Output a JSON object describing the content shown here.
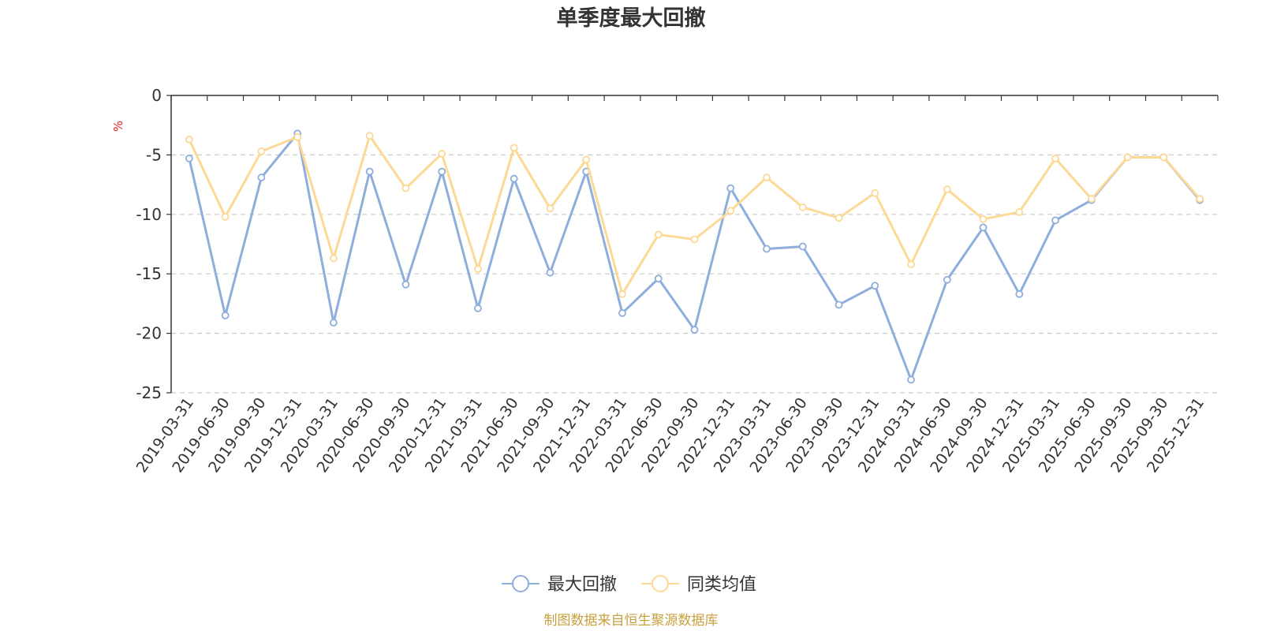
{
  "chart_data": {
    "type": "line",
    "title": "单季度最大回撤",
    "ylabel": "%",
    "xlabel": "",
    "ylim": [
      -25,
      0
    ],
    "yticks": [
      0,
      -5,
      -10,
      -15,
      -20,
      -25
    ],
    "grid": "horizontal dashed",
    "legend_position": "bottom-center",
    "categories": [
      "2019-03-31",
      "2019-06-30",
      "2019-09-30",
      "2019-12-31",
      "2020-03-31",
      "2020-06-30",
      "2020-09-30",
      "2020-12-31",
      "2021-03-31",
      "2021-06-30",
      "2021-09-30",
      "2021-12-31",
      "2022-03-31",
      "2022-06-30",
      "2022-09-30",
      "2022-12-31",
      "2023-03-31",
      "2023-06-30",
      "2023-09-30",
      "2023-12-31",
      "2024-03-31",
      "2024-06-30",
      "2024-09-30",
      "2024-12-31",
      "2025-03-31",
      "2025-06-30",
      "2025-09-30",
      "2025-09-30",
      "2025-12-31"
    ],
    "series": [
      {
        "name": "最大回撤",
        "color": "#8eaedb",
        "values": [
          -5.3,
          -18.5,
          -6.9,
          -3.2,
          -19.1,
          -6.4,
          -15.9,
          -6.4,
          -17.9,
          -7.0,
          -14.9,
          -6.4,
          -18.3,
          -15.4,
          -19.7,
          -7.8,
          -12.9,
          -12.7,
          -17.6,
          -16.0,
          -23.9,
          -15.5,
          -11.1,
          -16.7,
          -10.5,
          -8.8,
          -5.2,
          -5.2,
          -8.8
        ]
      },
      {
        "name": "同类均值",
        "color": "#fcd995",
        "values": [
          -3.7,
          -10.2,
          -4.7,
          -3.5,
          -13.7,
          -3.4,
          -7.8,
          -4.9,
          -14.6,
          -4.4,
          -9.5,
          -5.4,
          -16.7,
          -11.7,
          -12.1,
          -9.7,
          -6.9,
          -9.4,
          -10.3,
          -8.2,
          -14.2,
          -7.9,
          -10.4,
          -9.8,
          -5.3,
          -8.7,
          -5.2,
          -5.2,
          -8.7
        ]
      }
    ],
    "source_note": "制图数据来自恒生聚源数据库"
  }
}
